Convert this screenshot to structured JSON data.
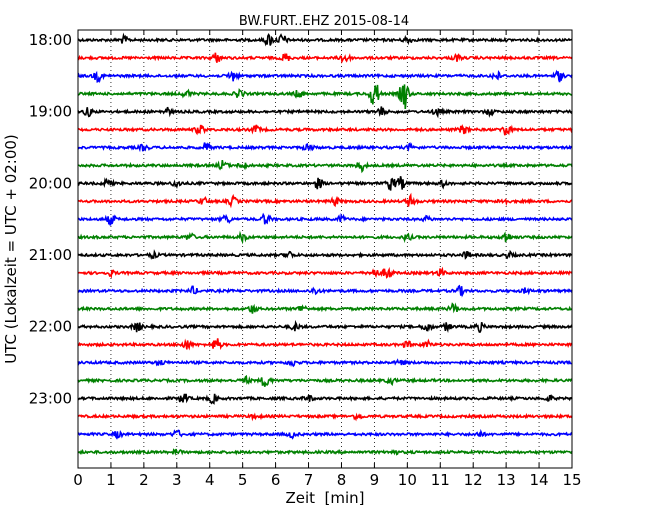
{
  "chart_data": {
    "type": "line",
    "title": "BW.FURT..EHZ 2015-08-14",
    "xlabel": "Zeit  [min]",
    "ylabel": "UTC (Lokalzeit = UTC + 02:00)",
    "xlim": [
      0,
      15
    ],
    "x_ticks": [
      0,
      1,
      2,
      3,
      4,
      5,
      6,
      7,
      8,
      9,
      10,
      11,
      12,
      13,
      14,
      15
    ],
    "x_tick_labels": [
      "0",
      "1",
      "2",
      "3",
      "4",
      "5",
      "6",
      "7",
      "8",
      "9",
      "10",
      "11",
      "12",
      "13",
      "14",
      "15"
    ],
    "y_tick_labels": [
      "18:00",
      "19:00",
      "20:00",
      "21:00",
      "22:00",
      "23:00"
    ],
    "grid": "vertical-dotted",
    "trace_colors": [
      "#000000",
      "#ff0000",
      "#0000ff",
      "#008000"
    ],
    "traces": [
      {
        "start": "18:00",
        "color": "#000000",
        "events": [
          {
            "t": 1.4,
            "a": 0.6
          },
          {
            "t": 5.8,
            "a": 1.0
          },
          {
            "t": 6.2,
            "a": 0.9
          },
          {
            "t": 10.0,
            "a": 0.5
          }
        ]
      },
      {
        "start": "18:15",
        "color": "#ff0000",
        "events": [
          {
            "t": 4.2,
            "a": 0.8
          },
          {
            "t": 6.3,
            "a": 0.7
          },
          {
            "t": 8.1,
            "a": 1.0
          },
          {
            "t": 11.5,
            "a": 0.5
          }
        ]
      },
      {
        "start": "18:30",
        "color": "#0000ff",
        "events": [
          {
            "t": 0.6,
            "a": 0.8
          },
          {
            "t": 4.7,
            "a": 0.9
          },
          {
            "t": 12.7,
            "a": 0.7
          },
          {
            "t": 14.6,
            "a": 0.9
          }
        ]
      },
      {
        "start": "18:45",
        "color": "#008000",
        "events": [
          {
            "t": 3.3,
            "a": 0.6
          },
          {
            "t": 4.9,
            "a": 0.7
          },
          {
            "t": 9.0,
            "a": 2.6
          },
          {
            "t": 9.9,
            "a": 2.8
          },
          {
            "t": 6.7,
            "a": 0.6
          }
        ]
      },
      {
        "start": "19:00",
        "color": "#000000",
        "events": [
          {
            "t": 0.3,
            "a": 0.7
          },
          {
            "t": 2.7,
            "a": 0.6
          },
          {
            "t": 9.2,
            "a": 0.7
          },
          {
            "t": 10.9,
            "a": 0.6
          },
          {
            "t": 12.5,
            "a": 0.5
          }
        ]
      },
      {
        "start": "19:15",
        "color": "#ff0000",
        "events": [
          {
            "t": 3.7,
            "a": 0.8
          },
          {
            "t": 5.4,
            "a": 0.6
          },
          {
            "t": 11.7,
            "a": 0.7
          },
          {
            "t": 13.0,
            "a": 1.0
          }
        ]
      },
      {
        "start": "19:30",
        "color": "#0000ff",
        "events": [
          {
            "t": 2.0,
            "a": 0.5
          },
          {
            "t": 3.9,
            "a": 0.8
          },
          {
            "t": 7.0,
            "a": 0.6
          },
          {
            "t": 10.1,
            "a": 0.5
          }
        ]
      },
      {
        "start": "19:45",
        "color": "#008000",
        "events": [
          {
            "t": 4.4,
            "a": 0.8
          },
          {
            "t": 5.0,
            "a": 0.5
          },
          {
            "t": 8.6,
            "a": 0.9
          }
        ]
      },
      {
        "start": "20:00",
        "color": "#000000",
        "events": [
          {
            "t": 0.9,
            "a": 0.6
          },
          {
            "t": 3.0,
            "a": 0.6
          },
          {
            "t": 7.3,
            "a": 0.9
          },
          {
            "t": 9.5,
            "a": 1.1
          },
          {
            "t": 9.8,
            "a": 1.0
          },
          {
            "t": 11.1,
            "a": 0.5
          }
        ]
      },
      {
        "start": "20:15",
        "color": "#ff0000",
        "events": [
          {
            "t": 3.8,
            "a": 0.6
          },
          {
            "t": 4.7,
            "a": 0.7
          },
          {
            "t": 7.8,
            "a": 0.6
          },
          {
            "t": 10.1,
            "a": 1.0
          },
          {
            "t": 12.9,
            "a": 0.5
          }
        ]
      },
      {
        "start": "20:30",
        "color": "#0000ff",
        "events": [
          {
            "t": 1.0,
            "a": 0.9
          },
          {
            "t": 4.5,
            "a": 0.7
          },
          {
            "t": 5.7,
            "a": 0.9
          },
          {
            "t": 8.0,
            "a": 0.5
          },
          {
            "t": 10.6,
            "a": 0.4
          }
        ]
      },
      {
        "start": "20:45",
        "color": "#008000",
        "events": [
          {
            "t": 3.4,
            "a": 0.6
          },
          {
            "t": 5.0,
            "a": 0.6
          },
          {
            "t": 10.0,
            "a": 0.5
          },
          {
            "t": 13.0,
            "a": 0.9
          }
        ]
      },
      {
        "start": "21:00",
        "color": "#000000",
        "events": [
          {
            "t": 2.3,
            "a": 0.4
          },
          {
            "t": 6.4,
            "a": 0.6
          },
          {
            "t": 11.8,
            "a": 0.5
          },
          {
            "t": 13.1,
            "a": 0.4
          }
        ]
      },
      {
        "start": "21:15",
        "color": "#ff0000",
        "events": [
          {
            "t": 1.0,
            "a": 0.4
          },
          {
            "t": 9.4,
            "a": 1.0
          },
          {
            "t": 9.0,
            "a": 0.7
          },
          {
            "t": 11.0,
            "a": 0.6
          }
        ]
      },
      {
        "start": "21:30",
        "color": "#0000ff",
        "events": [
          {
            "t": 3.5,
            "a": 0.6
          },
          {
            "t": 7.2,
            "a": 0.5
          },
          {
            "t": 11.6,
            "a": 0.7
          },
          {
            "t": 13.6,
            "a": 0.4
          }
        ]
      },
      {
        "start": "21:45",
        "color": "#008000",
        "events": [
          {
            "t": 5.3,
            "a": 0.7
          },
          {
            "t": 6.8,
            "a": 0.6
          },
          {
            "t": 11.4,
            "a": 0.8
          }
        ]
      },
      {
        "start": "22:00",
        "color": "#000000",
        "events": [
          {
            "t": 1.8,
            "a": 0.8
          },
          {
            "t": 6.6,
            "a": 0.6
          },
          {
            "t": 10.6,
            "a": 0.8
          },
          {
            "t": 11.2,
            "a": 0.6
          },
          {
            "t": 12.2,
            "a": 0.7
          }
        ]
      },
      {
        "start": "22:15",
        "color": "#ff0000",
        "events": [
          {
            "t": 3.3,
            "a": 0.8
          },
          {
            "t": 4.2,
            "a": 1.1
          },
          {
            "t": 10.0,
            "a": 0.5
          },
          {
            "t": 10.6,
            "a": 0.5
          }
        ]
      },
      {
        "start": "22:30",
        "color": "#0000ff",
        "events": [
          {
            "t": 2.5,
            "a": 0.4
          },
          {
            "t": 6.5,
            "a": 0.5
          },
          {
            "t": 9.8,
            "a": 0.4
          }
        ]
      },
      {
        "start": "22:45",
        "color": "#008000",
        "events": [
          {
            "t": 5.1,
            "a": 0.5
          },
          {
            "t": 5.7,
            "a": 1.1
          },
          {
            "t": 9.5,
            "a": 0.5
          }
        ]
      },
      {
        "start": "23:00",
        "color": "#000000",
        "events": [
          {
            "t": 3.2,
            "a": 0.9
          },
          {
            "t": 4.1,
            "a": 0.7
          },
          {
            "t": 7.0,
            "a": 0.5
          },
          {
            "t": 14.3,
            "a": 0.4
          }
        ]
      },
      {
        "start": "23:15",
        "color": "#ff0000",
        "events": [
          {
            "t": 5.4,
            "a": 0.3
          },
          {
            "t": 8.5,
            "a": 0.5
          }
        ]
      },
      {
        "start": "23:30",
        "color": "#0000ff",
        "events": [
          {
            "t": 1.2,
            "a": 0.5
          },
          {
            "t": 3.0,
            "a": 0.6
          },
          {
            "t": 6.5,
            "a": 0.5
          },
          {
            "t": 12.2,
            "a": 0.4
          }
        ]
      },
      {
        "start": "23:45",
        "color": "#008000",
        "events": [
          {
            "t": 3.0,
            "a": 0.4
          },
          {
            "t": 9.6,
            "a": 0.3
          }
        ]
      }
    ]
  }
}
